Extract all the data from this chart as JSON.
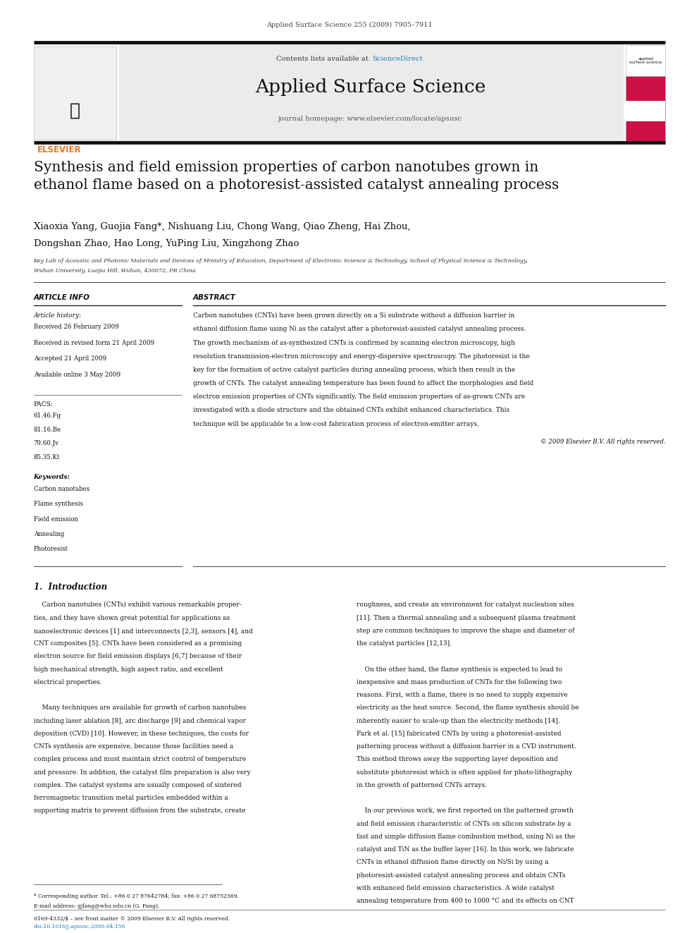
{
  "page_width": 9.92,
  "page_height": 13.23,
  "bg_color": "#ffffff",
  "journal_ref": "Applied Surface Science 255 (2009) 7905–7911",
  "journal_name": "Applied Surface Science",
  "contents_text": "Contents lists available at ",
  "sciencedirect_text": "ScienceDirect",
  "homepage_text": "journal homepage: www.elsevier.com/locate/apsusc",
  "elsevier_color": "#e87722",
  "sciencedirect_color": "#1a7fbd",
  "title": "Synthesis and field emission properties of carbon nanotubes grown in\nethanol flame based on a photoresist-assisted catalyst annealing process",
  "authors_line1": "Xiaoxia Yang, Guojia Fang*, Nishuang Liu, Chong Wang, Qiao Zheng, Hai Zhou,",
  "authors_line2": "Dongshan Zhao, Hao Long, YuPing Liu, Xingzhong Zhao",
  "affiliation_line1": "Key Lab of Acoustic and Photonic Materials and Devices of Ministry of Education, Department of Electronic Science & Technology, School of Physical Science & Technology,",
  "affiliation_line2": "Wuhan University, Luojia Hill, Wuhan, 430072, PR China",
  "article_info_title": "ARTICLE INFO",
  "abstract_title": "ABSTRACT",
  "article_history_label": "Article history:",
  "history_items": [
    "Received 26 February 2009",
    "Received in revised form 21 April 2009",
    "Accepted 21 April 2009",
    "Available online 3 May 2009"
  ],
  "pacs_label": "PACS:",
  "pacs_codes": [
    "61.46.Fg",
    "81.16.Be",
    "79.60.Jv",
    "85.35.Kt"
  ],
  "keywords_label": "Keywords:",
  "keywords": [
    "Carbon nanotubes",
    "Flame synthesis",
    "Field emission",
    "Annealing",
    "Photoresist"
  ],
  "abstract_lines": [
    "Carbon nanotubes (CNTs) have been grown directly on a Si substrate without a diffusion barrier in",
    "ethanol diffusion flame using Ni as the catalyst after a photoresist-assisted catalyst annealing process.",
    "The growth mechanism of as-synthesized CNTs is confirmed by scanning electron microscopy, high",
    "resolution transmission-electron microscopy and energy-dispersive spectroscopy. The photoresist is the",
    "key for the formation of active catalyst particles during annealing process, which then result in the",
    "growth of CNTs. The catalyst annealing temperature has been found to affect the morphologies and field",
    "electron emission properties of CNTs significantly. The field emission properties of as-grown CNTs are",
    "investigated with a diode structure and the obtained CNTs exhibit enhanced characteristics. This",
    "technique will be applicable to a low-cost fabrication process of electron-emitter arrays."
  ],
  "copyright": "© 2009 Elsevier B.V. All rights reserved.",
  "section1_title": "1.  Introduction",
  "intro_col1_lines": [
    "    Carbon nanotubes (CNTs) exhibit various remarkable proper-",
    "ties, and they have shown great potential for applications as",
    "nanoelectronic devices [1] and interconnects [2,3], sensors [4], and",
    "CNT composites [5]. CNTs have been considered as a promising",
    "electron source for field emission displays [6,7] because of their",
    "high mechanical strength, high aspect ratio, and excellent",
    "electrical properties.",
    "",
    "    Many techniques are available for growth of carbon nanotubes",
    "including laser ablation [8], arc discharge [9] and chemical vapor",
    "deposition (CVD) [10]. However, in these techniques, the costs for",
    "CNTs synthesis are expensive, because those facilities need a",
    "complex process and must maintain strict control of temperature",
    "and pressure. In addition, the catalyst film preparation is also very",
    "complex. The catalyst systems are usually composed of sintered",
    "ferromagnetic transition metal particles embedded within a",
    "supporting matrix to prevent diffusion from the substrate, create"
  ],
  "intro_col2_lines": [
    "roughness, and create an environment for catalyst nucleation sites",
    "[11]. Then a thermal annealing and a subsequent plasma treatment",
    "step are common techniques to improve the shape and diameter of",
    "the catalyst particles [12,13].",
    "",
    "    On the other hand, the flame synthesis is expected to lead to",
    "inexpensive and mass production of CNTs for the following two",
    "reasons. First, with a flame, there is no need to supply expensive",
    "electricity as the heat source. Second, the flame synthesis should be",
    "inherently easier to scale-up than the electricity methods [14].",
    "Park et al. [15] fabricated CNTs by using a photoresist-assisted",
    "patterning process without a diffusion barrier in a CVD instrument.",
    "This method throws away the supporting layer deposition and",
    "substitute photoresist which is often applied for photo-lithography",
    "in the growth of patterned CNTs arrays.",
    "",
    "    In our previous work, we first reported on the patterned growth",
    "and field emission characteristic of CNTs on silicon substrate by a",
    "fast and simple diffusion flame combustion method, using Ni as the",
    "catalyst and TiN as the buffer layer [16]. In this work, we fabricate",
    "CNTs in ethanol diffusion flame directly on Ni/Si by using a",
    "photoresist-assisted catalyst annealing process and obtain CNTs",
    "with enhanced field emission characteristics. A wide catalyst",
    "annealing temperature from 400 to 1000 °C and its effects on CNT"
  ],
  "footnote_star": "* Corresponding author. Tel.: +86 0 27 87642784; fax: +86 0 27 68752569.",
  "footnote_email": "E-mail address: gjfang@whu.edu.cn (G. Fang).",
  "footnote_issn": "0169-4332/$ – see front matter © 2009 Elsevier B.V. All rights reserved.",
  "footnote_doi": "doi:10.1016/j.apsusc.2009.04.156"
}
